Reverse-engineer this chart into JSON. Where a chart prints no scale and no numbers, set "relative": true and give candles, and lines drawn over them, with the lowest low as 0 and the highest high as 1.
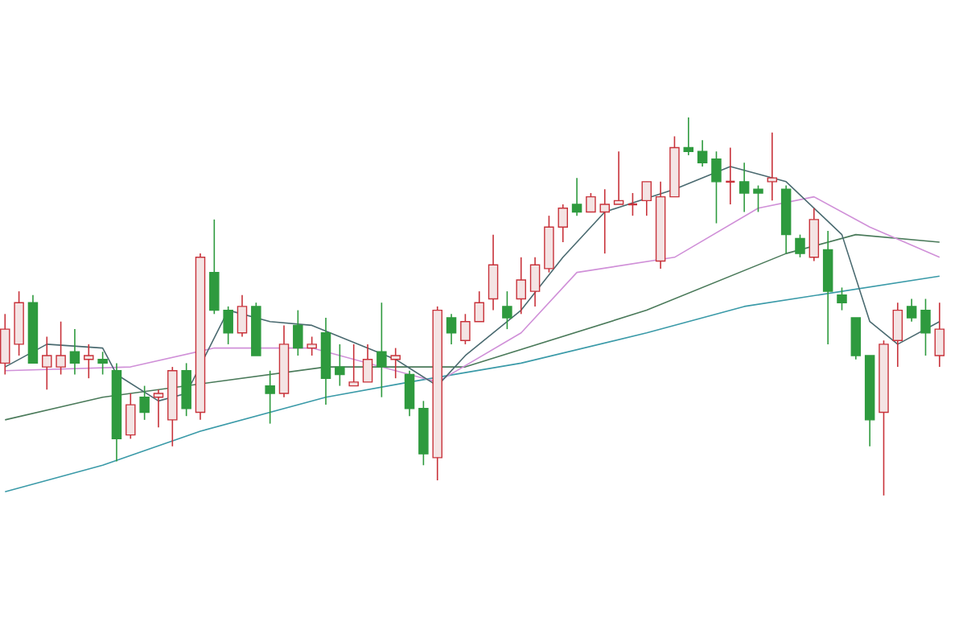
{
  "chart_data": {
    "type": "candlestick",
    "relative": true,
    "categories": [
      null,
      null,
      null,
      null,
      null,
      null,
      null,
      null,
      null,
      null,
      null,
      null,
      null,
      null,
      null,
      null,
      null,
      null,
      null,
      null,
      null,
      null,
      null,
      null,
      null,
      null,
      null,
      null,
      null,
      null,
      null,
      null,
      null,
      null,
      null,
      null,
      null,
      null,
      null,
      null,
      null,
      null,
      null,
      null,
      null,
      null,
      null,
      null,
      null,
      null,
      null,
      null,
      null,
      null,
      null,
      null,
      null,
      null,
      null,
      null,
      null,
      null,
      null,
      null,
      null,
      null,
      null,
      null
    ],
    "ohlc": [
      [
        0.35,
        0.48,
        0.32,
        0.44
      ],
      [
        0.4,
        0.54,
        0.37,
        0.51
      ],
      [
        0.51,
        0.53,
        0.35,
        0.35
      ],
      [
        0.34,
        0.42,
        0.28,
        0.37
      ],
      [
        0.34,
        0.46,
        0.32,
        0.37
      ],
      [
        0.38,
        0.44,
        0.32,
        0.35
      ],
      [
        0.36,
        0.4,
        0.31,
        0.37
      ],
      [
        0.36,
        0.38,
        0.32,
        0.35
      ],
      [
        0.33,
        0.35,
        0.09,
        0.15
      ],
      [
        0.16,
        0.27,
        0.15,
        0.24
      ],
      [
        0.26,
        0.29,
        0.2,
        0.22
      ],
      [
        0.26,
        0.28,
        0.18,
        0.27
      ],
      [
        0.2,
        0.34,
        0.13,
        0.33
      ],
      [
        0.33,
        0.35,
        0.21,
        0.23
      ],
      [
        0.22,
        0.64,
        0.2,
        0.63
      ],
      [
        0.59,
        0.73,
        0.48,
        0.49
      ],
      [
        0.49,
        0.5,
        0.4,
        0.43
      ],
      [
        0.43,
        0.53,
        0.42,
        0.5
      ],
      [
        0.5,
        0.51,
        0.37,
        0.37
      ],
      [
        0.29,
        0.33,
        0.19,
        0.27
      ],
      [
        0.27,
        0.45,
        0.26,
        0.4
      ],
      [
        0.45,
        0.49,
        0.37,
        0.39
      ],
      [
        0.39,
        0.42,
        0.37,
        0.4
      ],
      [
        0.43,
        0.47,
        0.24,
        0.31
      ],
      [
        0.34,
        0.4,
        0.29,
        0.32
      ],
      [
        0.29,
        0.4,
        0.29,
        0.3
      ],
      [
        0.3,
        0.4,
        0.3,
        0.36
      ],
      [
        0.38,
        0.51,
        0.26,
        0.34
      ],
      [
        0.36,
        0.39,
        0.31,
        0.37
      ],
      [
        0.32,
        0.33,
        0.21,
        0.23
      ],
      [
        0.23,
        0.25,
        0.08,
        0.11
      ],
      [
        0.1,
        0.5,
        0.04,
        0.49
      ],
      [
        0.47,
        0.48,
        0.4,
        0.43
      ],
      [
        0.41,
        0.48,
        0.4,
        0.46
      ],
      [
        0.46,
        0.54,
        0.46,
        0.51
      ],
      [
        0.52,
        0.69,
        0.49,
        0.61
      ],
      [
        0.5,
        0.54,
        0.44,
        0.47
      ],
      [
        0.52,
        0.63,
        0.48,
        0.57
      ],
      [
        0.54,
        0.63,
        0.5,
        0.61
      ],
      [
        0.6,
        0.74,
        0.59,
        0.71
      ],
      [
        0.71,
        0.77,
        0.67,
        0.76
      ],
      [
        0.77,
        0.84,
        0.74,
        0.75
      ],
      [
        0.75,
        0.8,
        0.75,
        0.79
      ],
      [
        0.75,
        0.81,
        0.64,
        0.77
      ],
      [
        0.77,
        0.91,
        0.77,
        0.78
      ],
      [
        0.77,
        0.8,
        0.74,
        0.77
      ],
      [
        0.78,
        0.83,
        0.74,
        0.83
      ],
      [
        0.62,
        0.83,
        0.6,
        0.79
      ],
      [
        0.79,
        0.95,
        0.79,
        0.92
      ],
      [
        0.92,
        1.0,
        0.9,
        0.91
      ],
      [
        0.91,
        0.94,
        0.87,
        0.88
      ],
      [
        0.89,
        0.91,
        0.72,
        0.83
      ],
      [
        0.83,
        0.92,
        0.77,
        0.83
      ],
      [
        0.83,
        0.88,
        0.75,
        0.8
      ],
      [
        0.81,
        0.82,
        0.75,
        0.8
      ],
      [
        0.83,
        0.96,
        0.78,
        0.84
      ],
      [
        0.81,
        0.82,
        0.64,
        0.69
      ],
      [
        0.68,
        0.69,
        0.63,
        0.64
      ],
      [
        0.63,
        0.76,
        0.62,
        0.73
      ],
      [
        0.65,
        0.7,
        0.4,
        0.54
      ],
      [
        0.53,
        0.55,
        0.49,
        0.51
      ],
      [
        0.47,
        0.47,
        0.36,
        0.37
      ],
      [
        0.37,
        0.37,
        0.13,
        0.2
      ],
      [
        0.22,
        0.41,
        0.0,
        0.4
      ],
      [
        0.41,
        0.51,
        0.34,
        0.49
      ],
      [
        0.5,
        0.52,
        0.46,
        0.47
      ],
      [
        0.49,
        0.52,
        0.37,
        0.43
      ],
      [
        0.37,
        0.51,
        0.34,
        0.44
      ]
    ],
    "series": [
      {
        "type": "line",
        "color": "#3a9aa8",
        "values": [
          0.01,
          null,
          null,
          null,
          null,
          null,
          null,
          0.08,
          null,
          null,
          null,
          null,
          null,
          null,
          0.17,
          null,
          null,
          null,
          null,
          null,
          null,
          null,
          null,
          0.26,
          null,
          null,
          null,
          null,
          null,
          0.3,
          null,
          null,
          null,
          null,
          null,
          null,
          null,
          0.35,
          null,
          null,
          null,
          null,
          null,
          null,
          null,
          null,
          0.43,
          null,
          null,
          null,
          null,
          null,
          null,
          0.5,
          null,
          null,
          null,
          null,
          null,
          null,
          0.54,
          null,
          null,
          null,
          null,
          null,
          null,
          0.58
        ]
      },
      {
        "type": "line",
        "color": "#4a7a5a",
        "values": [
          0.2,
          null,
          null,
          null,
          null,
          null,
          null,
          0.26,
          null,
          null,
          null,
          null,
          null,
          null,
          null,
          null,
          null,
          null,
          null,
          null,
          null,
          null,
          null,
          0.34,
          null,
          null,
          null,
          null,
          null,
          null,
          null,
          null,
          null,
          0.34,
          null,
          null,
          null,
          null,
          null,
          null,
          null,
          null,
          null,
          null,
          null,
          null,
          0.49,
          null,
          null,
          null,
          null,
          null,
          null,
          null,
          null,
          null,
          0.64,
          null,
          null,
          null,
          null,
          0.69,
          null,
          null,
          null,
          null,
          null,
          0.67
        ]
      },
      {
        "type": "line",
        "color": "#d090d8",
        "values": [
          0.33,
          null,
          null,
          null,
          null,
          null,
          null,
          null,
          null,
          0.34,
          null,
          null,
          null,
          null,
          null,
          0.39,
          null,
          null,
          null,
          null,
          null,
          null,
          0.39,
          null,
          null,
          null,
          null,
          null,
          null,
          null,
          null,
          0.3,
          null,
          null,
          null,
          null,
          null,
          0.43,
          null,
          null,
          null,
          0.59,
          null,
          null,
          null,
          null,
          null,
          null,
          0.63,
          null,
          null,
          null,
          null,
          null,
          0.76,
          null,
          null,
          null,
          0.79,
          null,
          null,
          null,
          0.71,
          null,
          null,
          null,
          null,
          0.63
        ]
      },
      {
        "type": "line",
        "color": "#4a6a70",
        "values": [
          0.34,
          null,
          null,
          0.4,
          null,
          null,
          null,
          0.39,
          0.32,
          null,
          null,
          0.25,
          null,
          0.27,
          null,
          null,
          0.49,
          null,
          null,
          0.46,
          null,
          null,
          0.45,
          null,
          null,
          null,
          null,
          null,
          0.36,
          null,
          null,
          0.29,
          null,
          0.37,
          null,
          null,
          null,
          0.49,
          null,
          null,
          0.63,
          null,
          null,
          0.75,
          null,
          null,
          null,
          null,
          0.81,
          null,
          null,
          null,
          0.87,
          null,
          null,
          null,
          0.83,
          null,
          null,
          null,
          0.69,
          null,
          0.46,
          null,
          0.4,
          null,
          null,
          0.46
        ]
      }
    ]
  }
}
